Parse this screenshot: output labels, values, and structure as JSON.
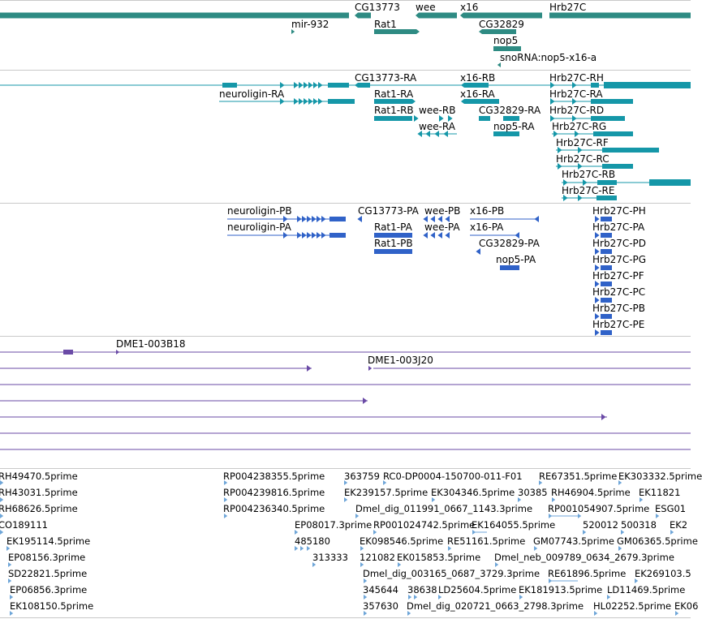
{
  "colors": {
    "gene": "#2e8b83",
    "transcript": "#1597a8",
    "protein": "#3062c8",
    "clone": "#6a4aa6",
    "est": "#6fa6d8",
    "divider": "#c9c9c9"
  },
  "tracks": {
    "genes": {
      "labels": [
        "CG13773",
        "wee",
        "x16",
        "Hrb27C",
        "mir-932",
        "Rat1",
        "CG32829",
        "nop5",
        "snoRNA:nop5-x16-a"
      ]
    },
    "transcripts": {
      "labels": [
        "CG13773-RA",
        "x16-RB",
        "Hrb27C-RH",
        "neuroligin-RA",
        "Rat1-RA",
        "x16-RA",
        "Hrb27C-RA",
        "Rat1-RB",
        "wee-RB",
        "CG32829-RA",
        "Hrb27C-RD",
        "wee-RA",
        "nop5-RA",
        "Hrb27C-RG",
        "Hrb27C-RF",
        "Hrb27C-RC",
        "Hrb27C-RB",
        "Hrb27C-RE"
      ]
    },
    "proteins": {
      "labels": [
        "neuroligin-PB",
        "CG13773-PA",
        "wee-PB",
        "x16-PB",
        "Hrb27C-PH",
        "neuroligin-PA",
        "wee-PA",
        "x16-PA",
        "Hrb27C-PA",
        "Rat1-PA",
        "Rat1-PB",
        "CG32829-PA",
        "Hrb27C-PD",
        "nop5-PA",
        "Hrb27C-PG",
        "Hrb27C-PF",
        "Hrb27C-PC",
        "Hrb27C-PB",
        "Hrb27C-PE"
      ]
    },
    "clones": {
      "labels": [
        "DME1-003B18",
        "DME1-003J20"
      ]
    },
    "ests": {
      "labels": [
        "RH49470.5prime",
        "RP004238355.5prime",
        "363759",
        "RC0-DP0004-150700-011-F01",
        "RE67351.5prime",
        "EK303332.5prime",
        "RH43031.5prime",
        "RP004239816.5prime",
        "EK239157.5prime",
        "EK304346.5prime",
        "30385",
        "RH46904.5prime",
        "EK11821",
        "RH68626.5prime",
        "RP004236340.5prime",
        "Dmel_dig_011991_0667_1143.3prime",
        "RP001054907.5prime",
        "ESG01",
        "CO189111",
        "EP08017.3prime",
        "RP001024742.5prime",
        "EK164055.5prime",
        "520012",
        "500318",
        "EK2",
        "EK195114.5prime",
        "485180",
        "EK098546.5prime",
        "RE51161.5prime",
        "GM07743.5prime",
        "GM06365.5prime",
        "EP08156.3prime",
        "313333",
        "121082",
        "EK015853.5prime",
        "Dmel_neb_009789_0634_2679.3prime",
        "SD22821.5prime",
        "Dmel_dig_003165_0687_3729.3prime",
        "RE61896.5prime",
        "EK269103.5",
        "EP06856.3prime",
        "345644",
        "38638",
        "LD25604.5prime",
        "EK181913.5prime",
        "LD11469.5prime",
        "EK108150.5prime",
        "357630",
        "Dmel_dig_020721_0663_2798.3prime",
        "HL02252.5prime",
        "EK06"
      ]
    }
  }
}
